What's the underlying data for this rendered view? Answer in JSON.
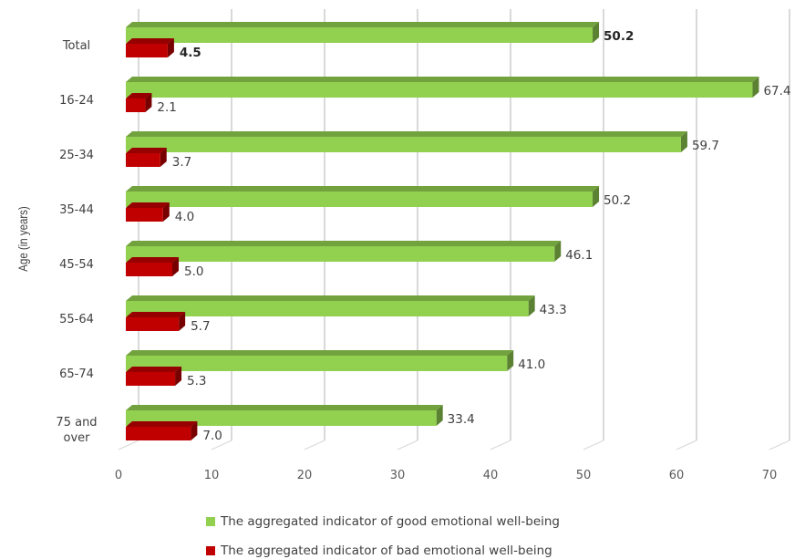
{
  "chart_data": {
    "type": "bar",
    "orientation": "horizontal",
    "categories": [
      "Total",
      "16-24",
      "25-34",
      "35-44",
      "45-54",
      "55-64",
      "65-74",
      "75 and over"
    ],
    "series": [
      {
        "name": "The aggregated indicator of good emotional well-being",
        "color": "#92D050",
        "values": [
          50.2,
          67.4,
          59.7,
          50.2,
          46.1,
          43.3,
          41.0,
          33.4
        ],
        "labels": [
          "50.2",
          "67.4",
          "59.7",
          "50.2",
          "46.1",
          "43.3",
          "41.0",
          "33.4"
        ]
      },
      {
        "name": "The aggregated indicator of bad emotional well-being",
        "color": "#C00000",
        "values": [
          4.5,
          2.1,
          3.7,
          4.0,
          5.0,
          5.7,
          5.3,
          7.0
        ],
        "labels": [
          "4.5",
          "2.1",
          "3.7",
          "4.0",
          "5.0",
          "5.7",
          "5.3",
          "7.0"
        ]
      }
    ],
    "ylabel": "Age (in years)",
    "xlim": [
      0,
      70
    ],
    "xticks": [
      "0",
      "10",
      "20",
      "30",
      "40",
      "50",
      "60",
      "70"
    ],
    "bold_category": "Total",
    "grid": true,
    "style": "3d-bar",
    "legend_position": "bottom"
  }
}
